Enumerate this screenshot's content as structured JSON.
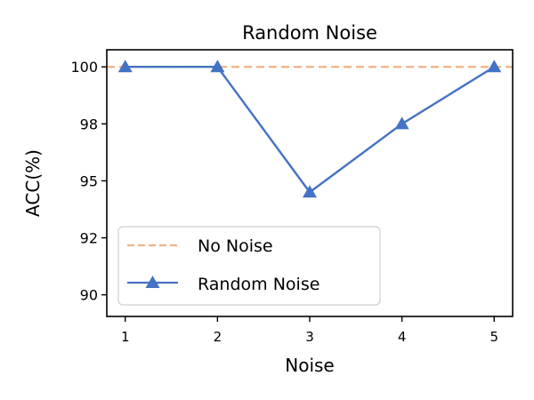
{
  "chart_data": {
    "type": "line",
    "title": "Random Noise",
    "xlabel": "Noise",
    "ylabel": "ACC(%)",
    "x": [
      1,
      2,
      3,
      4,
      5
    ],
    "series": [
      {
        "name": "Random Noise",
        "values": [
          100,
          100,
          94.5,
          97.5,
          100
        ],
        "color": "#4472C4",
        "linestyle": "solid",
        "marker": "triangle-up"
      },
      {
        "name": "No Noise",
        "values": [
          100,
          100,
          100,
          100,
          100
        ],
        "color": "#F4B183",
        "linestyle": "dashed",
        "marker": "none",
        "type": "hline",
        "y": 100
      }
    ],
    "xticks": [
      1,
      2,
      3,
      4,
      5
    ],
    "xtick_labels": [
      "1",
      "2",
      "3",
      "4",
      "5"
    ],
    "yticks": [
      90,
      92.5,
      95,
      97.5,
      100
    ],
    "ytick_labels": [
      "90",
      "92",
      "95",
      "98",
      "100"
    ],
    "xlim": [
      0.8,
      5.2
    ],
    "ylim": [
      89.05,
      100.75
    ],
    "grid": false,
    "legend": {
      "position": "lower left",
      "entries": [
        "No Noise",
        "Random Noise"
      ]
    }
  }
}
